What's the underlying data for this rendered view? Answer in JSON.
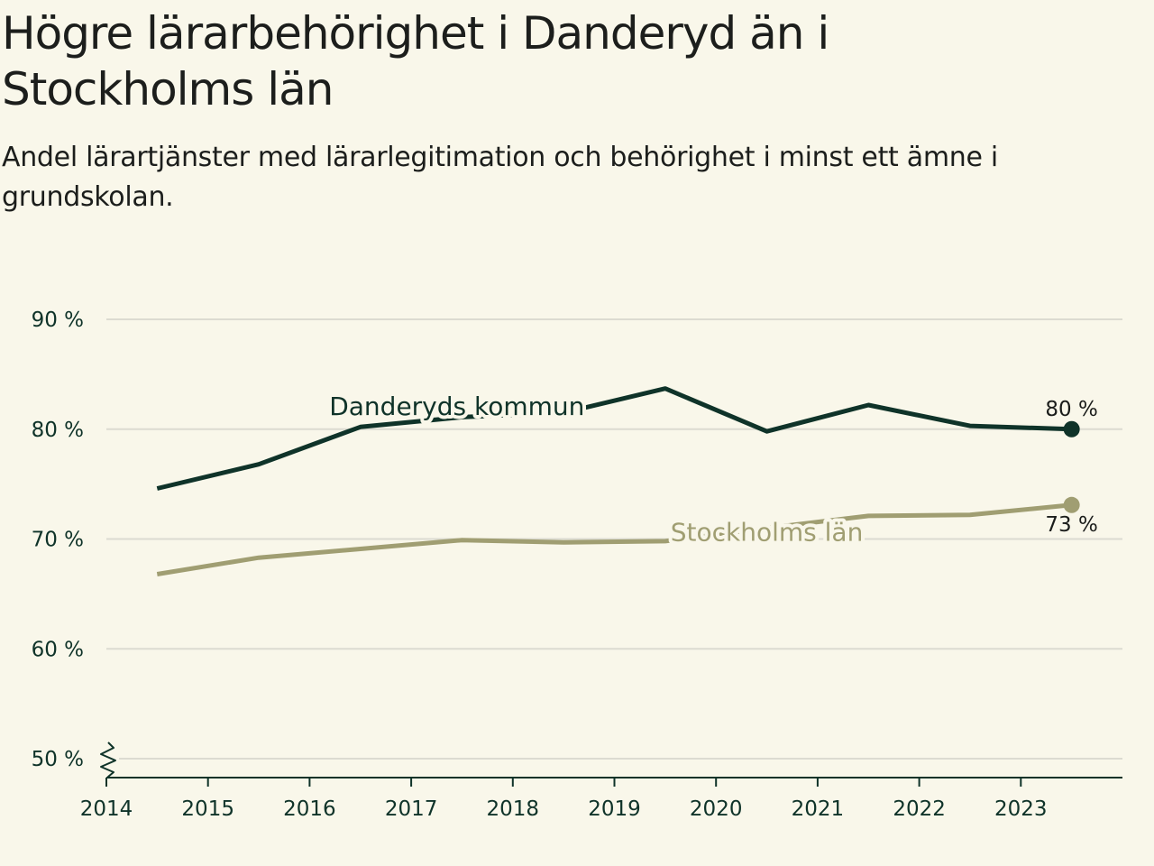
{
  "header": {
    "title": "Högre lärarbehörighet i Danderyd än i Stockholms län",
    "subtitle": "Andel lärartjänster med lärarlegitimation och behörighet i minst ett ämne i grundskolan."
  },
  "chart_data": {
    "type": "line",
    "title": "Högre lärarbehörighet i Danderyd än i Stockholms län",
    "subtitle": "Andel lärartjänster med lärarlegitimation och behörighet i minst ett ämne i grundskolan.",
    "xlabel": "",
    "ylabel": "",
    "x_ticks": [
      "2014",
      "2015",
      "2016",
      "2017",
      "2018",
      "2019",
      "2020",
      "2021",
      "2022",
      "2023"
    ],
    "y_ticks": [
      50,
      60,
      70,
      80,
      90
    ],
    "y_tick_labels": [
      "50 %",
      "60 %",
      "70 %",
      "80 %",
      "90 %"
    ],
    "ylim": [
      50,
      90
    ],
    "xlim": [
      2014,
      2024
    ],
    "axis_break": true,
    "grid": true,
    "series": [
      {
        "name": "Danderyds kommun",
        "color": "#0f3329",
        "x": [
          2014.5,
          2015.5,
          2016.5,
          2017.5,
          2018.5,
          2019.5,
          2020.5,
          2021.5,
          2022.5,
          2023.5
        ],
        "values": [
          74.6,
          76.8,
          80.2,
          81.1,
          81.5,
          83.7,
          79.8,
          82.2,
          80.3,
          80.0
        ],
        "end_label": "80 %"
      },
      {
        "name": "Stockholms län",
        "color": "#a09e72",
        "x": [
          2014.5,
          2015.5,
          2016.5,
          2017.5,
          2018.5,
          2019.5,
          2020.5,
          2021.5,
          2022.5,
          2023.5
        ],
        "values": [
          66.8,
          68.3,
          69.1,
          69.9,
          69.7,
          69.8,
          71.0,
          72.1,
          72.2,
          73.1
        ],
        "end_label": "73 %"
      }
    ]
  }
}
